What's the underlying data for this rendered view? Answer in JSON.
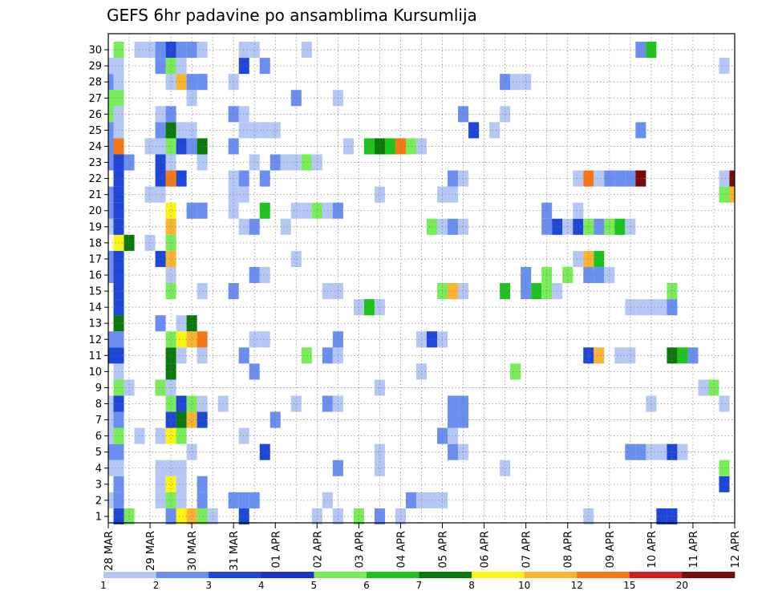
{
  "chart_data": {
    "type": "heatmap",
    "title": "GEFS 6hr padavine po ansamblima Kursumlija",
    "xlabel": "",
    "ylabel": "",
    "x_tick_labels": [
      "28 MAR",
      "29 MAR",
      "30 MAR",
      "31 MAR",
      "01 APR",
      "02 APR",
      "03 APR",
      "04 APR",
      "05 APR",
      "06 APR",
      "07 APR",
      "08 APR",
      "09 APR",
      "10 APR",
      "11 APR",
      "12 APR"
    ],
    "y_tick_labels": [
      "1",
      "2",
      "3",
      "4",
      "5",
      "6",
      "7",
      "8",
      "9",
      "10",
      "11",
      "12",
      "13",
      "14",
      "15",
      "16",
      "17",
      "18",
      "19",
      "20",
      "21",
      "22",
      "23",
      "24",
      "25",
      "26",
      "27",
      "28",
      "29",
      "30"
    ],
    "y_range": [
      1,
      30
    ],
    "x_range": [
      0,
      60
    ],
    "steps_per_day": 4,
    "grid": true,
    "colorbar": {
      "levels": [
        "1",
        "2",
        "3",
        "4",
        "5",
        "6",
        "7",
        "8",
        "10",
        "12",
        "15",
        "20"
      ],
      "colors": [
        "#b4c7f5",
        "#6b8ff0",
        "#1e46d7",
        "#1a32c8",
        "#79ec5a",
        "#1ec31e",
        "#0a780a",
        "#faf514",
        "#fab432",
        "#f57814",
        "#d21e1e",
        "#780a0a"
      ]
    },
    "cells": [
      [
        1,
        1,
        3
      ],
      [
        1,
        2,
        5
      ],
      [
        1,
        6,
        2
      ],
      [
        1,
        7,
        8
      ],
      [
        1,
        8,
        10
      ],
      [
        1,
        9,
        5
      ],
      [
        1,
        10,
        1
      ],
      [
        1,
        13,
        3
      ],
      [
        1,
        20,
        1
      ],
      [
        1,
        22,
        1
      ],
      [
        1,
        24,
        5
      ],
      [
        1,
        26,
        2
      ],
      [
        1,
        28,
        1
      ],
      [
        1,
        46,
        1
      ],
      [
        1,
        53,
        3
      ],
      [
        1,
        54,
        3
      ],
      [
        2,
        0,
        1
      ],
      [
        2,
        1,
        2
      ],
      [
        2,
        5,
        1
      ],
      [
        2,
        6,
        5
      ],
      [
        2,
        7,
        1
      ],
      [
        2,
        9,
        2
      ],
      [
        2,
        12,
        2
      ],
      [
        2,
        13,
        2
      ],
      [
        2,
        14,
        2
      ],
      [
        2,
        21,
        1
      ],
      [
        2,
        29,
        2
      ],
      [
        2,
        30,
        1
      ],
      [
        2,
        31,
        1
      ],
      [
        2,
        32,
        1
      ],
      [
        3,
        1,
        2
      ],
      [
        3,
        5,
        1
      ],
      [
        3,
        6,
        8
      ],
      [
        3,
        7,
        1
      ],
      [
        3,
        9,
        2
      ],
      [
        3,
        59,
        3
      ],
      [
        4,
        0,
        1
      ],
      [
        4,
        1,
        1
      ],
      [
        4,
        5,
        1
      ],
      [
        4,
        6,
        1
      ],
      [
        4,
        7,
        1
      ],
      [
        4,
        22,
        2
      ],
      [
        4,
        26,
        1
      ],
      [
        4,
        38,
        1
      ],
      [
        4,
        59,
        5
      ],
      [
        5,
        0,
        2
      ],
      [
        5,
        1,
        2
      ],
      [
        5,
        8,
        1
      ],
      [
        5,
        15,
        3
      ],
      [
        5,
        26,
        1
      ],
      [
        5,
        33,
        2
      ],
      [
        5,
        34,
        1
      ],
      [
        5,
        50,
        2
      ],
      [
        5,
        51,
        2
      ],
      [
        5,
        52,
        1
      ],
      [
        5,
        53,
        1
      ],
      [
        5,
        54,
        3
      ],
      [
        5,
        55,
        1
      ],
      [
        6,
        0,
        1
      ],
      [
        6,
        1,
        5
      ],
      [
        6,
        3,
        1
      ],
      [
        6,
        5,
        1
      ],
      [
        6,
        6,
        8
      ],
      [
        6,
        7,
        5
      ],
      [
        6,
        13,
        1
      ],
      [
        6,
        32,
        2
      ],
      [
        6,
        33,
        1
      ],
      [
        7,
        0,
        1
      ],
      [
        7,
        1,
        2
      ],
      [
        7,
        6,
        3
      ],
      [
        7,
        7,
        7
      ],
      [
        7,
        8,
        10
      ],
      [
        7,
        9,
        3
      ],
      [
        7,
        16,
        2
      ],
      [
        7,
        33,
        2
      ],
      [
        7,
        34,
        2
      ],
      [
        8,
        0,
        1
      ],
      [
        8,
        1,
        3
      ],
      [
        8,
        6,
        5
      ],
      [
        8,
        7,
        3
      ],
      [
        8,
        8,
        5
      ],
      [
        8,
        9,
        1
      ],
      [
        8,
        11,
        1
      ],
      [
        8,
        18,
        1
      ],
      [
        8,
        21,
        2
      ],
      [
        8,
        22,
        1
      ],
      [
        8,
        33,
        2
      ],
      [
        8,
        34,
        2
      ],
      [
        8,
        52,
        1
      ],
      [
        8,
        59,
        1
      ],
      [
        9,
        1,
        5
      ],
      [
        9,
        2,
        1
      ],
      [
        9,
        5,
        5
      ],
      [
        9,
        6,
        1
      ],
      [
        9,
        26,
        1
      ],
      [
        9,
        57,
        1
      ],
      [
        9,
        58,
        5
      ],
      [
        10,
        1,
        1
      ],
      [
        10,
        6,
        7
      ],
      [
        10,
        14,
        2
      ],
      [
        10,
        30,
        1
      ],
      [
        10,
        39,
        5
      ],
      [
        11,
        0,
        3
      ],
      [
        11,
        1,
        3
      ],
      [
        11,
        6,
        7
      ],
      [
        11,
        7,
        1
      ],
      [
        11,
        9,
        1
      ],
      [
        11,
        13,
        2
      ],
      [
        11,
        19,
        5
      ],
      [
        11,
        21,
        2
      ],
      [
        11,
        22,
        1
      ],
      [
        11,
        46,
        3
      ],
      [
        11,
        47,
        10
      ],
      [
        11,
        49,
        1
      ],
      [
        11,
        50,
        1
      ],
      [
        11,
        54,
        7
      ],
      [
        11,
        55,
        6
      ],
      [
        11,
        56,
        2
      ],
      [
        12,
        0,
        2
      ],
      [
        12,
        1,
        2
      ],
      [
        12,
        6,
        5
      ],
      [
        12,
        7,
        8
      ],
      [
        12,
        8,
        10
      ],
      [
        12,
        9,
        12
      ],
      [
        12,
        14,
        1
      ],
      [
        12,
        15,
        1
      ],
      [
        12,
        22,
        2
      ],
      [
        12,
        30,
        1
      ],
      [
        12,
        31,
        3
      ],
      [
        12,
        32,
        1
      ],
      [
        13,
        1,
        7
      ],
      [
        13,
        5,
        2
      ],
      [
        13,
        7,
        1
      ],
      [
        13,
        8,
        7
      ],
      [
        14,
        1,
        3
      ],
      [
        14,
        24,
        1
      ],
      [
        14,
        25,
        6
      ],
      [
        14,
        26,
        1
      ],
      [
        14,
        50,
        1
      ],
      [
        14,
        51,
        1
      ],
      [
        14,
        52,
        1
      ],
      [
        14,
        53,
        1
      ],
      [
        14,
        54,
        2
      ],
      [
        15,
        1,
        3
      ],
      [
        15,
        6,
        5
      ],
      [
        15,
        9,
        1
      ],
      [
        15,
        12,
        2
      ],
      [
        15,
        21,
        1
      ],
      [
        15,
        22,
        1
      ],
      [
        15,
        32,
        5
      ],
      [
        15,
        33,
        10
      ],
      [
        15,
        34,
        1
      ],
      [
        15,
        38,
        6
      ],
      [
        15,
        40,
        2
      ],
      [
        15,
        41,
        6
      ],
      [
        15,
        42,
        5
      ],
      [
        15,
        43,
        1
      ],
      [
        15,
        54,
        5
      ],
      [
        16,
        0,
        2
      ],
      [
        16,
        1,
        3
      ],
      [
        16,
        6,
        1
      ],
      [
        16,
        14,
        2
      ],
      [
        16,
        15,
        1
      ],
      [
        16,
        40,
        2
      ],
      [
        16,
        42,
        5
      ],
      [
        16,
        44,
        5
      ],
      [
        16,
        46,
        2
      ],
      [
        16,
        47,
        2
      ],
      [
        16,
        48,
        1
      ],
      [
        17,
        0,
        2
      ],
      [
        17,
        1,
        3
      ],
      [
        17,
        5,
        3
      ],
      [
        17,
        6,
        10
      ],
      [
        17,
        18,
        1
      ],
      [
        17,
        45,
        1
      ],
      [
        17,
        46,
        10
      ],
      [
        17,
        47,
        6
      ],
      [
        18,
        1,
        8
      ],
      [
        18,
        2,
        7
      ],
      [
        18,
        4,
        1
      ],
      [
        18,
        6,
        5
      ],
      [
        19,
        0,
        1
      ],
      [
        19,
        1,
        3
      ],
      [
        19,
        6,
        10
      ],
      [
        19,
        13,
        1
      ],
      [
        19,
        14,
        2
      ],
      [
        19,
        17,
        1
      ],
      [
        19,
        31,
        5
      ],
      [
        19,
        32,
        1
      ],
      [
        19,
        33,
        2
      ],
      [
        19,
        34,
        1
      ],
      [
        19,
        42,
        2
      ],
      [
        19,
        43,
        3
      ],
      [
        19,
        44,
        1
      ],
      [
        19,
        45,
        3
      ],
      [
        19,
        46,
        5
      ],
      [
        19,
        47,
        2
      ],
      [
        19,
        48,
        5
      ],
      [
        19,
        49,
        6
      ],
      [
        19,
        50,
        1
      ],
      [
        20,
        0,
        2
      ],
      [
        20,
        1,
        3
      ],
      [
        20,
        6,
        8
      ],
      [
        20,
        8,
        2
      ],
      [
        20,
        9,
        2
      ],
      [
        20,
        12,
        1
      ],
      [
        20,
        15,
        6
      ],
      [
        20,
        18,
        1
      ],
      [
        20,
        19,
        1
      ],
      [
        20,
        20,
        5
      ],
      [
        20,
        21,
        1
      ],
      [
        20,
        22,
        2
      ],
      [
        20,
        42,
        2
      ],
      [
        20,
        45,
        1
      ],
      [
        21,
        0,
        2
      ],
      [
        21,
        1,
        3
      ],
      [
        21,
        4,
        1
      ],
      [
        21,
        5,
        1
      ],
      [
        21,
        12,
        1
      ],
      [
        21,
        13,
        1
      ],
      [
        21,
        26,
        1
      ],
      [
        21,
        32,
        1
      ],
      [
        21,
        33,
        1
      ],
      [
        21,
        59,
        5
      ],
      [
        21,
        60,
        10
      ],
      [
        22,
        1,
        3
      ],
      [
        22,
        5,
        3
      ],
      [
        22,
        6,
        12
      ],
      [
        22,
        7,
        3
      ],
      [
        22,
        12,
        1
      ],
      [
        22,
        13,
        2
      ],
      [
        22,
        15,
        2
      ],
      [
        22,
        33,
        2
      ],
      [
        22,
        34,
        1
      ],
      [
        22,
        45,
        1
      ],
      [
        22,
        46,
        12
      ],
      [
        22,
        47,
        1
      ],
      [
        22,
        48,
        2
      ],
      [
        22,
        49,
        2
      ],
      [
        22,
        50,
        2
      ],
      [
        22,
        51,
        20
      ],
      [
        22,
        59,
        1
      ],
      [
        22,
        60,
        20
      ],
      [
        23,
        0,
        2
      ],
      [
        23,
        1,
        3
      ],
      [
        23,
        2,
        2
      ],
      [
        23,
        5,
        3
      ],
      [
        23,
        6,
        1
      ],
      [
        23,
        9,
        1
      ],
      [
        23,
        14,
        1
      ],
      [
        23,
        16,
        2
      ],
      [
        23,
        17,
        1
      ],
      [
        23,
        18,
        1
      ],
      [
        23,
        19,
        5
      ],
      [
        23,
        20,
        1
      ],
      [
        24,
        0,
        2
      ],
      [
        24,
        1,
        12
      ],
      [
        24,
        4,
        1
      ],
      [
        24,
        5,
        1
      ],
      [
        24,
        6,
        5
      ],
      [
        24,
        7,
        3
      ],
      [
        24,
        8,
        2
      ],
      [
        24,
        9,
        7
      ],
      [
        24,
        12,
        2
      ],
      [
        24,
        23,
        1
      ],
      [
        24,
        25,
        6
      ],
      [
        24,
        26,
        7
      ],
      [
        24,
        27,
        6
      ],
      [
        24,
        28,
        12
      ],
      [
        24,
        29,
        5
      ],
      [
        24,
        30,
        1
      ],
      [
        25,
        0,
        2
      ],
      [
        25,
        1,
        1
      ],
      [
        25,
        5,
        2
      ],
      [
        25,
        6,
        7
      ],
      [
        25,
        7,
        1
      ],
      [
        25,
        8,
        1
      ],
      [
        25,
        13,
        1
      ],
      [
        25,
        14,
        1
      ],
      [
        25,
        15,
        1
      ],
      [
        25,
        16,
        1
      ],
      [
        25,
        35,
        3
      ],
      [
        25,
        37,
        1
      ],
      [
        25,
        51,
        2
      ],
      [
        26,
        0,
        5
      ],
      [
        26,
        1,
        1
      ],
      [
        26,
        5,
        1
      ],
      [
        26,
        6,
        2
      ],
      [
        26,
        12,
        2
      ],
      [
        26,
        13,
        1
      ],
      [
        26,
        34,
        2
      ],
      [
        26,
        38,
        1
      ],
      [
        27,
        0,
        5
      ],
      [
        27,
        1,
        5
      ],
      [
        27,
        8,
        1
      ],
      [
        27,
        18,
        2
      ],
      [
        27,
        22,
        1
      ],
      [
        28,
        0,
        2
      ],
      [
        28,
        1,
        1
      ],
      [
        28,
        6,
        1
      ],
      [
        28,
        7,
        10
      ],
      [
        28,
        8,
        2
      ],
      [
        28,
        9,
        2
      ],
      [
        28,
        12,
        1
      ],
      [
        28,
        38,
        2
      ],
      [
        28,
        39,
        1
      ],
      [
        28,
        40,
        1
      ],
      [
        29,
        0,
        1
      ],
      [
        29,
        1,
        1
      ],
      [
        29,
        5,
        2
      ],
      [
        29,
        6,
        5
      ],
      [
        29,
        7,
        1
      ],
      [
        29,
        13,
        3
      ],
      [
        29,
        15,
        2
      ],
      [
        29,
        59,
        1
      ],
      [
        30,
        1,
        5
      ],
      [
        30,
        3,
        1
      ],
      [
        30,
        4,
        1
      ],
      [
        30,
        5,
        2
      ],
      [
        30,
        6,
        3
      ],
      [
        30,
        7,
        2
      ],
      [
        30,
        8,
        2
      ],
      [
        30,
        9,
        1
      ],
      [
        30,
        13,
        1
      ],
      [
        30,
        14,
        1
      ],
      [
        30,
        19,
        1
      ],
      [
        30,
        51,
        2
      ],
      [
        30,
        52,
        6
      ]
    ]
  }
}
